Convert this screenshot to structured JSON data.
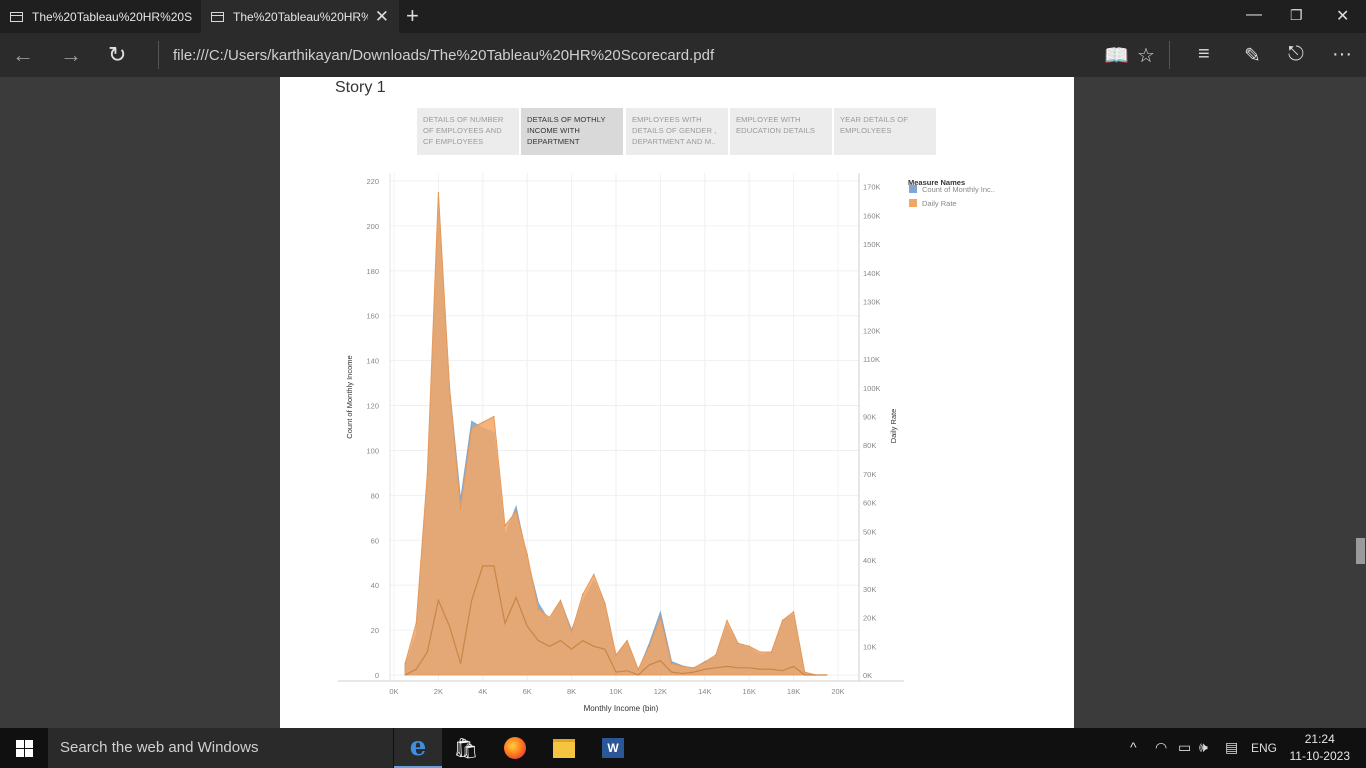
{
  "browser": {
    "tabs": [
      {
        "title": "The%20Tableau%20HR%20S"
      },
      {
        "title": "The%20Tableau%20HR%"
      }
    ],
    "url": "file:///C:/Users/karthikayan/Downloads/The%20Tableau%20HR%20Scorecard.pdf"
  },
  "pdf": {
    "story_title": "Story 1",
    "story_tabs": [
      {
        "label": "DETAILS OF NUMBER OF EMPLOYEES AND CF EMPLOYEES",
        "active": false
      },
      {
        "label": "DETAILS OF MOTHLY INCOME WITH DEPARTMENT",
        "active": true
      },
      {
        "label": "EMPLOYEES WITH DETAILS OF GENDER , DEPARTMENT AND M..",
        "active": false
      },
      {
        "label": "EMPLOYEE WITH EDUCATION DETAILS",
        "active": false
      },
      {
        "label": "YEAR DETAILS OF EMPLOLYEES",
        "active": false
      }
    ]
  },
  "chart_data": {
    "type": "area",
    "xlabel": "Monthly Income (bin)",
    "ylabel": "Count of Monthly Income",
    "y2label": "Daily Rate",
    "x_ticks": [
      "0K",
      "2K",
      "4K",
      "6K",
      "8K",
      "10K",
      "12K",
      "14K",
      "16K",
      "18K",
      "20K"
    ],
    "y_ticks": [
      0,
      20,
      40,
      60,
      80,
      100,
      120,
      140,
      160,
      180,
      200,
      220
    ],
    "y2_ticks": [
      "0K",
      "10K",
      "20K",
      "30K",
      "40K",
      "50K",
      "60K",
      "70K",
      "80K",
      "90K",
      "100K",
      "110K",
      "120K",
      "130K",
      "140K",
      "150K",
      "160K",
      "170K"
    ],
    "xlim": [
      0,
      20000
    ],
    "ylim": [
      0,
      220
    ],
    "y2lim": [
      0,
      172000
    ],
    "legend_title": "Measure Names",
    "legend_position": "top-right",
    "grid": true,
    "x": [
      500,
      1000,
      1500,
      2000,
      2500,
      3000,
      3500,
      4000,
      4500,
      5000,
      5500,
      6000,
      6500,
      7000,
      7500,
      8000,
      8500,
      9000,
      9500,
      10000,
      10500,
      11000,
      11500,
      12000,
      12500,
      13000,
      13500,
      14000,
      14500,
      15000,
      15500,
      16000,
      16500,
      17000,
      17500,
      18000,
      18500,
      19000,
      19500
    ],
    "series": [
      {
        "name": "Count of Monthly Inc..",
        "color": "#7fa6cf",
        "values": [
          4,
          18,
          85,
          210,
          128,
          78,
          113,
          110,
          108,
          62,
          75,
          52,
          32,
          24,
          33,
          20,
          33,
          42,
          32,
          8,
          15,
          2,
          14,
          28,
          6,
          4,
          3,
          6,
          8,
          22,
          14,
          12,
          9,
          10,
          24,
          27,
          1,
          0,
          0
        ]
      },
      {
        "name": "Daily Rate",
        "color": "#f2a765",
        "axis": "right",
        "values": [
          4000,
          18000,
          70000,
          168000,
          100000,
          58000,
          86000,
          88000,
          90000,
          52000,
          57000,
          42000,
          23000,
          20000,
          26000,
          15000,
          28000,
          35000,
          25000,
          7000,
          12000,
          2000,
          10000,
          20000,
          4000,
          3000,
          2500,
          4500,
          7000,
          19000,
          11000,
          10000,
          8000,
          8000,
          19000,
          22000,
          1000,
          0,
          0
        ]
      }
    ],
    "daily_rate_inner_line": [
      0,
      2000,
      8000,
      26000,
      17000,
      4000,
      26000,
      38000,
      38000,
      18000,
      27000,
      17000,
      12000,
      10000,
      12000,
      9000,
      12000,
      10000,
      9000,
      1000,
      1500,
      0,
      3500,
      5000,
      1000,
      500,
      1000,
      2000,
      2500,
      3000,
      2500,
      2500,
      2000,
      2000,
      1500,
      3000,
      0,
      0,
      0
    ]
  }
}
